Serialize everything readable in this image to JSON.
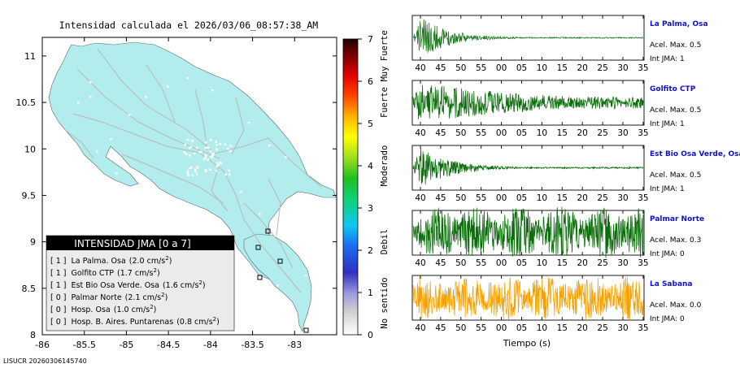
{
  "map": {
    "title": "Intensidad calculada el 2026/03/06_08:57:38_AM",
    "footer": "LISUCR 20260306145740",
    "x_ticks": [
      -86,
      -85.5,
      -85,
      -84.5,
      -84,
      -83.5,
      -83
    ],
    "y_ticks": [
      8,
      8.5,
      9,
      9.5,
      10,
      10.5,
      11
    ],
    "xlim": [
      -86,
      -82.5
    ],
    "ylim": [
      8,
      11.2
    ],
    "land_color": "#b3ecec",
    "legend": {
      "title": "INTENSIDAD JMA [0 a 7]",
      "items": [
        {
          "level": "[ 1 ]",
          "name": "La Palma. Osa",
          "value": "(2.0 cm/s",
          "sup": "2",
          "close": ")"
        },
        {
          "level": "[ 1 ]",
          "name": "Golfito CTP",
          "value": "(1.7 cm/s",
          "sup": "2",
          "close": ")"
        },
        {
          "level": "[ 1 ]",
          "name": "Est Bio Osa Verde. Osa",
          "value": "(1.6 cm/s",
          "sup": "2",
          "close": ")"
        },
        {
          "level": "[ 0 ]",
          "name": "Palmar Norte",
          "value": "(2.1 cm/s",
          "sup": "2",
          "close": ")"
        },
        {
          "level": "[ 0 ]",
          "name": "Hosp. Osa",
          "value": "(1.0 cm/s",
          "sup": "2",
          "close": ")"
        },
        {
          "level": "[ 0 ]",
          "name": "Hosp. B. Aires. Puntarenas",
          "value": "(0.8 cm/s",
          "sup": "2",
          "close": ")"
        }
      ]
    }
  },
  "colorbar": {
    "ticks": [
      "0",
      "1",
      "2",
      "3",
      "4",
      "5",
      "6",
      "7"
    ],
    "labels": [
      "No sentido",
      "Debil",
      "Moderado",
      "Fuerte",
      "Muy Fuerte"
    ]
  },
  "chart_data": {
    "type": "line",
    "xlabel": "Tiempo (s)",
    "x_ticks": [
      "40",
      "45",
      "50",
      "55",
      "00",
      "05",
      "10",
      "15",
      "20",
      "25",
      "30",
      "35"
    ],
    "series": [
      {
        "name": "La Palma, Osa",
        "acel_label": "Acel. Max. 0.5",
        "int_label": "Int JMA: 1",
        "color": "#1f7a1f",
        "name_color": "#1010d0",
        "amp": 1.0,
        "decay": 0.055,
        "floor": 0.03
      },
      {
        "name": "Golfito CTP",
        "acel_label": "Acel. Max. 0.5",
        "int_label": "Int JMA: 1",
        "color": "#0a6e0a",
        "name_color": "#1010d0",
        "amp": 1.0,
        "decay": 0.012,
        "floor": 0.3
      },
      {
        "name": "Est Bio Osa Verde, Osa",
        "acel_label": "Acel. Max. 0.5",
        "int_label": "Int JMA: 1",
        "color": "#0a6e0a",
        "name_color": "#1010d0",
        "amp": 1.0,
        "decay": 0.05,
        "floor": 0.04
      },
      {
        "name": "Palmar Norte",
        "acel_label": "Acel. Max. 0.3",
        "int_label": "Int JMA: 0",
        "color": "#0a6e0a",
        "name_color": "#1010d0",
        "amp": 1.0,
        "decay": 0.0,
        "floor": 0.45
      },
      {
        "name": "La Sabana",
        "acel_label": "Acel. Max. 0.0",
        "int_label": "Int JMA: 0",
        "color": "#f5a000",
        "name_color": "#1010d0",
        "amp": 0.85,
        "decay": 0.0,
        "floor": 0.55
      }
    ]
  }
}
